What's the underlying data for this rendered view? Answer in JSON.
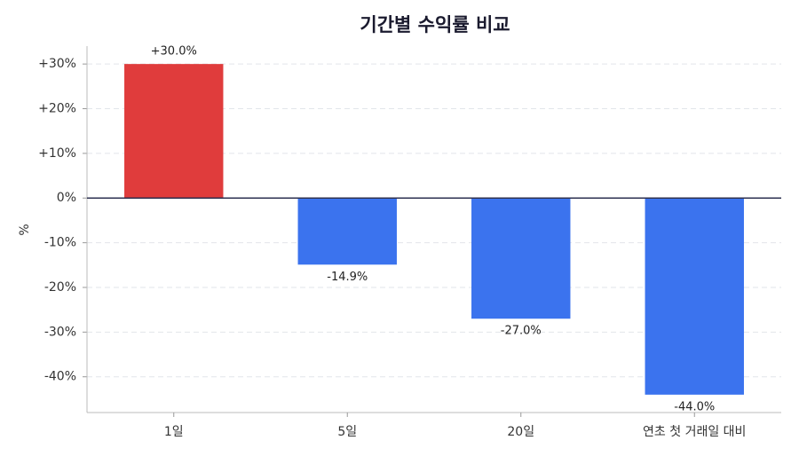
{
  "chart_data": {
    "type": "bar",
    "title": "기간별 수익률 비교",
    "y_label": "%",
    "categories": [
      "1일",
      "5일",
      "20일",
      "연초 첫 거래일 대비"
    ],
    "values": [
      30.0,
      -14.9,
      -27.0,
      -44.0
    ],
    "value_labels": [
      "+30.0%",
      "-14.9%",
      "-27.0%",
      "-44.0%"
    ],
    "colors": [
      "#e03c3c",
      "#3b73ee",
      "#3b73ee",
      "#3b73ee"
    ],
    "ylim": [
      -48,
      34
    ],
    "yticks": [
      {
        "value": -40,
        "label": "-40%"
      },
      {
        "value": -30,
        "label": "-30%"
      },
      {
        "value": -20,
        "label": "-20%"
      },
      {
        "value": -10,
        "label": "-10%"
      },
      {
        "value": 0,
        "label": "0%"
      },
      {
        "value": 10,
        "label": "+10%"
      },
      {
        "value": 20,
        "label": "+20%"
      },
      {
        "value": 30,
        "label": "+30%"
      }
    ],
    "grid": true
  }
}
